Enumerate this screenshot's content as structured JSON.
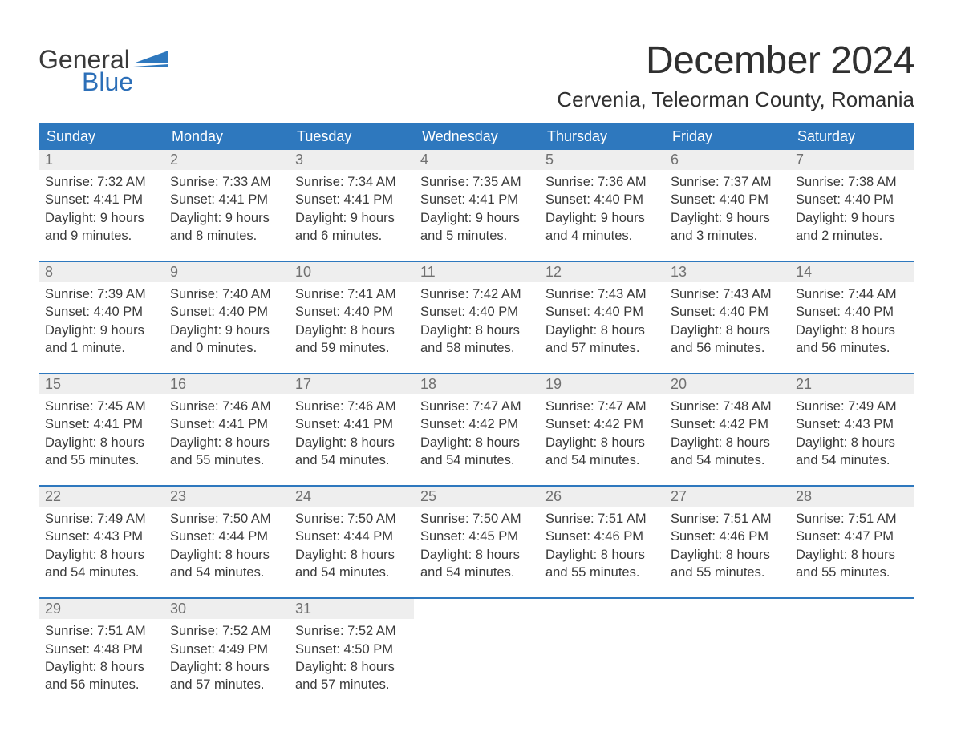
{
  "brand": {
    "word1": "General",
    "word2": "Blue",
    "flag_color": "#2e78be"
  },
  "header": {
    "month_title": "December 2024",
    "location": "Cervenia, Teleorman County, Romania",
    "title_color": "#303030",
    "title_fontsize": 48,
    "location_fontsize": 26
  },
  "calendar": {
    "type": "table",
    "columns": [
      "Sunday",
      "Monday",
      "Tuesday",
      "Wednesday",
      "Thursday",
      "Friday",
      "Saturday"
    ],
    "header_bg": "#2e78be",
    "header_fg": "#ffffff",
    "daynum_bg": "#eeeeee",
    "daynum_fg": "#707070",
    "body_fg": "#3a3a3a",
    "row_separator_color": "#2e78be",
    "cell_fontsize": 16.5,
    "weeks": [
      [
        {
          "day": "1",
          "sunrise": "Sunrise: 7:32 AM",
          "sunset": "Sunset: 4:41 PM",
          "dl1": "Daylight: 9 hours",
          "dl2": "and 9 minutes."
        },
        {
          "day": "2",
          "sunrise": "Sunrise: 7:33 AM",
          "sunset": "Sunset: 4:41 PM",
          "dl1": "Daylight: 9 hours",
          "dl2": "and 8 minutes."
        },
        {
          "day": "3",
          "sunrise": "Sunrise: 7:34 AM",
          "sunset": "Sunset: 4:41 PM",
          "dl1": "Daylight: 9 hours",
          "dl2": "and 6 minutes."
        },
        {
          "day": "4",
          "sunrise": "Sunrise: 7:35 AM",
          "sunset": "Sunset: 4:41 PM",
          "dl1": "Daylight: 9 hours",
          "dl2": "and 5 minutes."
        },
        {
          "day": "5",
          "sunrise": "Sunrise: 7:36 AM",
          "sunset": "Sunset: 4:40 PM",
          "dl1": "Daylight: 9 hours",
          "dl2": "and 4 minutes."
        },
        {
          "day": "6",
          "sunrise": "Sunrise: 7:37 AM",
          "sunset": "Sunset: 4:40 PM",
          "dl1": "Daylight: 9 hours",
          "dl2": "and 3 minutes."
        },
        {
          "day": "7",
          "sunrise": "Sunrise: 7:38 AM",
          "sunset": "Sunset: 4:40 PM",
          "dl1": "Daylight: 9 hours",
          "dl2": "and 2 minutes."
        }
      ],
      [
        {
          "day": "8",
          "sunrise": "Sunrise: 7:39 AM",
          "sunset": "Sunset: 4:40 PM",
          "dl1": "Daylight: 9 hours",
          "dl2": "and 1 minute."
        },
        {
          "day": "9",
          "sunrise": "Sunrise: 7:40 AM",
          "sunset": "Sunset: 4:40 PM",
          "dl1": "Daylight: 9 hours",
          "dl2": "and 0 minutes."
        },
        {
          "day": "10",
          "sunrise": "Sunrise: 7:41 AM",
          "sunset": "Sunset: 4:40 PM",
          "dl1": "Daylight: 8 hours",
          "dl2": "and 59 minutes."
        },
        {
          "day": "11",
          "sunrise": "Sunrise: 7:42 AM",
          "sunset": "Sunset: 4:40 PM",
          "dl1": "Daylight: 8 hours",
          "dl2": "and 58 minutes."
        },
        {
          "day": "12",
          "sunrise": "Sunrise: 7:43 AM",
          "sunset": "Sunset: 4:40 PM",
          "dl1": "Daylight: 8 hours",
          "dl2": "and 57 minutes."
        },
        {
          "day": "13",
          "sunrise": "Sunrise: 7:43 AM",
          "sunset": "Sunset: 4:40 PM",
          "dl1": "Daylight: 8 hours",
          "dl2": "and 56 minutes."
        },
        {
          "day": "14",
          "sunrise": "Sunrise: 7:44 AM",
          "sunset": "Sunset: 4:40 PM",
          "dl1": "Daylight: 8 hours",
          "dl2": "and 56 minutes."
        }
      ],
      [
        {
          "day": "15",
          "sunrise": "Sunrise: 7:45 AM",
          "sunset": "Sunset: 4:41 PM",
          "dl1": "Daylight: 8 hours",
          "dl2": "and 55 minutes."
        },
        {
          "day": "16",
          "sunrise": "Sunrise: 7:46 AM",
          "sunset": "Sunset: 4:41 PM",
          "dl1": "Daylight: 8 hours",
          "dl2": "and 55 minutes."
        },
        {
          "day": "17",
          "sunrise": "Sunrise: 7:46 AM",
          "sunset": "Sunset: 4:41 PM",
          "dl1": "Daylight: 8 hours",
          "dl2": "and 54 minutes."
        },
        {
          "day": "18",
          "sunrise": "Sunrise: 7:47 AM",
          "sunset": "Sunset: 4:42 PM",
          "dl1": "Daylight: 8 hours",
          "dl2": "and 54 minutes."
        },
        {
          "day": "19",
          "sunrise": "Sunrise: 7:47 AM",
          "sunset": "Sunset: 4:42 PM",
          "dl1": "Daylight: 8 hours",
          "dl2": "and 54 minutes."
        },
        {
          "day": "20",
          "sunrise": "Sunrise: 7:48 AM",
          "sunset": "Sunset: 4:42 PM",
          "dl1": "Daylight: 8 hours",
          "dl2": "and 54 minutes."
        },
        {
          "day": "21",
          "sunrise": "Sunrise: 7:49 AM",
          "sunset": "Sunset: 4:43 PM",
          "dl1": "Daylight: 8 hours",
          "dl2": "and 54 minutes."
        }
      ],
      [
        {
          "day": "22",
          "sunrise": "Sunrise: 7:49 AM",
          "sunset": "Sunset: 4:43 PM",
          "dl1": "Daylight: 8 hours",
          "dl2": "and 54 minutes."
        },
        {
          "day": "23",
          "sunrise": "Sunrise: 7:50 AM",
          "sunset": "Sunset: 4:44 PM",
          "dl1": "Daylight: 8 hours",
          "dl2": "and 54 minutes."
        },
        {
          "day": "24",
          "sunrise": "Sunrise: 7:50 AM",
          "sunset": "Sunset: 4:44 PM",
          "dl1": "Daylight: 8 hours",
          "dl2": "and 54 minutes."
        },
        {
          "day": "25",
          "sunrise": "Sunrise: 7:50 AM",
          "sunset": "Sunset: 4:45 PM",
          "dl1": "Daylight: 8 hours",
          "dl2": "and 54 minutes."
        },
        {
          "day": "26",
          "sunrise": "Sunrise: 7:51 AM",
          "sunset": "Sunset: 4:46 PM",
          "dl1": "Daylight: 8 hours",
          "dl2": "and 55 minutes."
        },
        {
          "day": "27",
          "sunrise": "Sunrise: 7:51 AM",
          "sunset": "Sunset: 4:46 PM",
          "dl1": "Daylight: 8 hours",
          "dl2": "and 55 minutes."
        },
        {
          "day": "28",
          "sunrise": "Sunrise: 7:51 AM",
          "sunset": "Sunset: 4:47 PM",
          "dl1": "Daylight: 8 hours",
          "dl2": "and 55 minutes."
        }
      ],
      [
        {
          "day": "29",
          "sunrise": "Sunrise: 7:51 AM",
          "sunset": "Sunset: 4:48 PM",
          "dl1": "Daylight: 8 hours",
          "dl2": "and 56 minutes."
        },
        {
          "day": "30",
          "sunrise": "Sunrise: 7:52 AM",
          "sunset": "Sunset: 4:49 PM",
          "dl1": "Daylight: 8 hours",
          "dl2": "and 57 minutes."
        },
        {
          "day": "31",
          "sunrise": "Sunrise: 7:52 AM",
          "sunset": "Sunset: 4:50 PM",
          "dl1": "Daylight: 8 hours",
          "dl2": "and 57 minutes."
        },
        null,
        null,
        null,
        null
      ]
    ]
  }
}
